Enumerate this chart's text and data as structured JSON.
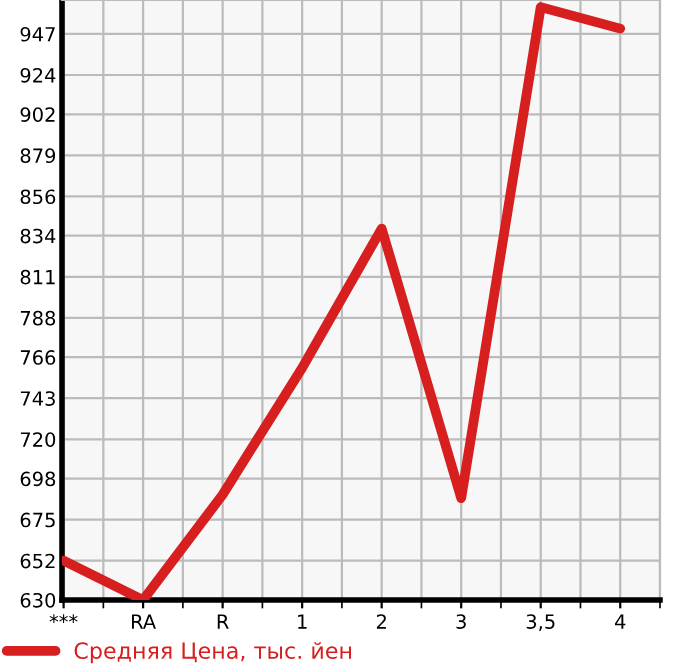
{
  "chart_data": {
    "type": "line",
    "categories": [
      "***",
      "RA",
      "R",
      "1",
      "2",
      "3",
      "3,5",
      "4"
    ],
    "series": [
      {
        "name": "Средняя Цена, тыс. йен",
        "color": "#d71f1f",
        "values": [
          652,
          630,
          689,
          760,
          838,
          687,
          962,
          950
        ]
      }
    ],
    "ylim": [
      630,
      966
    ],
    "yticks": [
      630,
      652,
      675,
      698,
      720,
      743,
      766,
      788,
      811,
      834,
      856,
      879,
      902,
      924,
      947
    ],
    "grid": true,
    "legend": "bottom",
    "marker": "none",
    "line_style": "solid"
  }
}
